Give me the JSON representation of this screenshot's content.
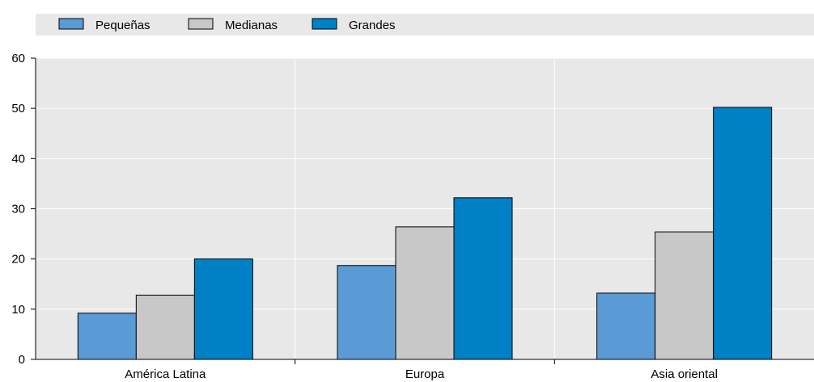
{
  "chart_data": {
    "type": "bar",
    "categories": [
      "América Latina",
      "Europa",
      "Asia oriental"
    ],
    "series": [
      {
        "name": "Pequeñas",
        "values": [
          9.2,
          18.7,
          13.2
        ],
        "color": "#5b9bd5"
      },
      {
        "name": "Medianas",
        "values": [
          12.8,
          26.4,
          25.4
        ],
        "color": "#c8c8c8"
      },
      {
        "name": "Grandes",
        "values": [
          20.0,
          32.2,
          50.2
        ],
        "color": "#0081c6"
      }
    ],
    "title": "",
    "xlabel": "",
    "ylabel": "",
    "ylim": [
      0,
      60
    ],
    "yticks": [
      0,
      10,
      20,
      30,
      40,
      50,
      60
    ],
    "grid": true,
    "legend_position": "top",
    "plot_background": "#e8e8e8",
    "legend_background": "#e8e8e8"
  }
}
